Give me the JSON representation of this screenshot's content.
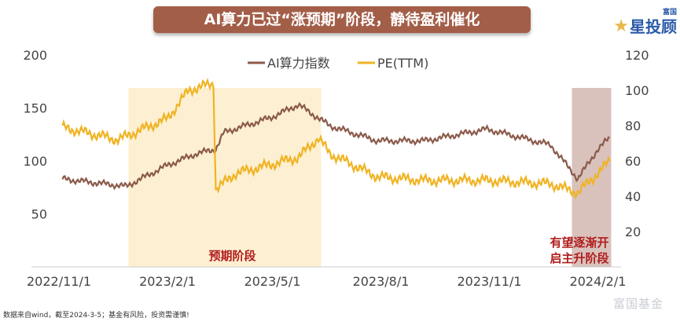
{
  "header": {
    "title": "AI算力已过“涨预期”阶段，静待盈利催化",
    "logo_top": "富国",
    "logo_main": "星投顾"
  },
  "footer": {
    "source": "数据来自wind，截至2024-3-5；基金有风险，投资需谨慎!",
    "watermark": "富国基金"
  },
  "chart_data": {
    "type": "line",
    "title": "AI算力已过“涨预期”阶段，静待盈利催化",
    "x_unit": "days since 2022/11/1",
    "x_ticks": [
      {
        "day": 0,
        "label": "2022/11/1"
      },
      {
        "day": 92,
        "label": "2023/2/1"
      },
      {
        "day": 181,
        "label": "2023/5/1"
      },
      {
        "day": 273,
        "label": "2023/8/1"
      },
      {
        "day": 365,
        "label": "2023/11/1"
      },
      {
        "day": 457,
        "label": "2024/2/1"
      }
    ],
    "left_axis": {
      "ylim": [
        0,
        200
      ],
      "ticks": [
        50,
        100,
        150,
        200
      ]
    },
    "right_axis": {
      "ylim": [
        0,
        120
      ],
      "ticks": [
        20,
        40,
        60,
        80,
        100,
        120
      ]
    },
    "legend": {
      "position": "top-center"
    },
    "series": [
      {
        "name": "AI算力指数",
        "axis": "left",
        "color": "#8b5a4a",
        "points": [
          [
            3,
            83
          ],
          [
            57,
            76
          ],
          [
            92,
            96
          ],
          [
            117,
            107
          ],
          [
            133,
            111
          ],
          [
            140,
            127
          ],
          [
            180,
            141
          ],
          [
            203,
            153
          ],
          [
            230,
            133
          ],
          [
            270,
            119
          ],
          [
            310,
            119
          ],
          [
            363,
            130
          ],
          [
            417,
            115
          ],
          [
            440,
            83
          ],
          [
            457,
            111
          ],
          [
            467,
            122
          ]
        ]
      },
      {
        "name": "PE(TTM)",
        "axis": "right",
        "color": "#f0b323",
        "points": [
          [
            3,
            79
          ],
          [
            50,
            72
          ],
          [
            92,
            84
          ],
          [
            110,
            100
          ],
          [
            131,
            104
          ],
          [
            133,
            44
          ],
          [
            150,
            53
          ],
          [
            180,
            58
          ],
          [
            203,
            62
          ],
          [
            220,
            73
          ],
          [
            230,
            64
          ],
          [
            270,
            51
          ],
          [
            310,
            49
          ],
          [
            363,
            49
          ],
          [
            417,
            47
          ],
          [
            440,
            42
          ],
          [
            457,
            53
          ],
          [
            467,
            60
          ]
        ]
      }
    ],
    "annotations": [
      {
        "label": "预期阶段",
        "range": [
          59,
          221
        ],
        "color": "#fdf0d2"
      },
      {
        "label": "有望逐渐开启主升阶段",
        "range": [
          435,
          467
        ],
        "color": "#d9c2bc"
      }
    ]
  }
}
